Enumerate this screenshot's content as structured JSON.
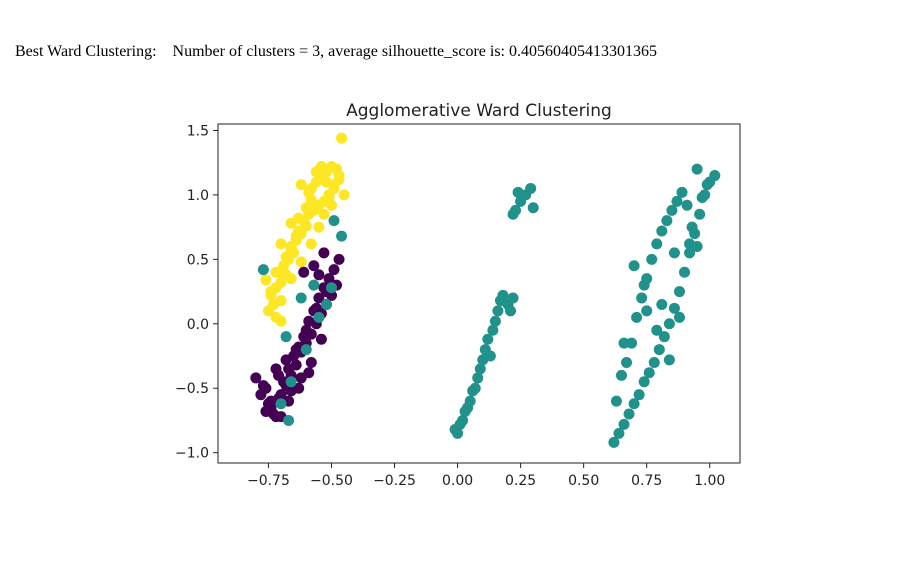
{
  "caption": {
    "label": "Best Ward Clustering:",
    "text": "Number of clusters = 3, average silhouette_score is: 0.40560405413301365"
  },
  "chart_data": {
    "type": "scatter",
    "title": "Agglomerative Ward Clustering",
    "xlabel": "",
    "ylabel": "",
    "xlim": [
      -0.95,
      1.12
    ],
    "ylim": [
      -1.08,
      1.55
    ],
    "x_ticks": [
      -0.75,
      -0.5,
      -0.25,
      0.0,
      0.25,
      0.5,
      0.75,
      1.0
    ],
    "x_tick_labels": [
      "−0.75",
      "−0.50",
      "−0.25",
      "0.00",
      "0.25",
      "0.50",
      "0.75",
      "1.00"
    ],
    "y_ticks": [
      -1.0,
      -0.5,
      0.0,
      0.5,
      1.0,
      1.5
    ],
    "y_tick_labels": [
      "−1.0",
      "−0.5",
      "0.0",
      "0.5",
      "1.0",
      "1.5"
    ],
    "grid": false,
    "legend": "none",
    "colors": {
      "cluster_yellow": "#fde725",
      "cluster_purple": "#440154",
      "cluster_teal": "#21918c"
    },
    "series": [
      {
        "color": "#fde725",
        "x": [
          -0.46,
          -0.48,
          -0.5,
          -0.52,
          -0.54,
          -0.56,
          -0.58,
          -0.47,
          -0.49,
          -0.51,
          -0.53,
          -0.55,
          -0.57,
          -0.59,
          -0.61,
          -0.6,
          -0.62,
          -0.64,
          -0.66,
          -0.63,
          -0.65,
          -0.67,
          -0.69,
          -0.71,
          -0.68,
          -0.7,
          -0.72,
          -0.74,
          -0.73,
          -0.75,
          -0.72,
          -0.7,
          -0.66,
          -0.62,
          -0.58,
          -0.55,
          -0.53,
          -0.51,
          -0.49,
          -0.47,
          -0.6,
          -0.64,
          -0.68,
          -0.72,
          -0.76,
          -0.74,
          -0.7,
          -0.66,
          -0.63,
          -0.59,
          -0.56,
          -0.54,
          -0.52,
          -0.5,
          -0.48,
          -0.62,
          -0.58,
          -0.66,
          -0.7,
          -0.45
        ],
        "y": [
          1.44,
          1.2,
          1.22,
          1.18,
          1.15,
          1.1,
          1.05,
          1.12,
          1.08,
          1.0,
          0.95,
          0.92,
          0.88,
          0.85,
          0.8,
          0.76,
          0.7,
          0.65,
          0.6,
          0.72,
          0.55,
          0.5,
          0.45,
          0.4,
          0.38,
          0.32,
          0.28,
          0.22,
          0.15,
          0.1,
          0.05,
          0.02,
          0.35,
          0.48,
          0.62,
          0.75,
          0.85,
          0.98,
          1.05,
          1.15,
          0.9,
          0.68,
          0.52,
          0.4,
          0.34,
          0.25,
          0.18,
          0.58,
          0.82,
          1.02,
          1.18,
          1.22,
          1.1,
          0.92,
          1.2,
          1.08,
          0.96,
          0.78,
          0.62,
          1.0
        ]
      },
      {
        "color": "#440154",
        "x": [
          -0.8,
          -0.78,
          -0.76,
          -0.74,
          -0.72,
          -0.7,
          -0.68,
          -0.66,
          -0.64,
          -0.62,
          -0.6,
          -0.58,
          -0.56,
          -0.54,
          -0.52,
          -0.5,
          -0.48,
          -0.77,
          -0.75,
          -0.73,
          -0.71,
          -0.69,
          -0.67,
          -0.65,
          -0.63,
          -0.61,
          -0.59,
          -0.57,
          -0.55,
          -0.53,
          -0.51,
          -0.49,
          -0.47,
          -0.72,
          -0.68,
          -0.64,
          -0.6,
          -0.56,
          -0.52,
          -0.7,
          -0.66,
          -0.62,
          -0.58,
          -0.54,
          -0.74,
          -0.76,
          -0.71,
          -0.67,
          -0.63,
          -0.59,
          -0.55,
          -0.57,
          -0.53,
          -0.61
        ],
        "y": [
          -0.42,
          -0.55,
          -0.68,
          -0.6,
          -0.72,
          -0.55,
          -0.48,
          -0.4,
          -0.32,
          -0.22,
          -0.15,
          -0.08,
          0.0,
          0.08,
          0.15,
          0.22,
          0.3,
          -0.48,
          -0.62,
          -0.7,
          -0.58,
          -0.45,
          -0.35,
          -0.25,
          -0.18,
          -0.1,
          0.02,
          0.1,
          0.2,
          0.28,
          0.35,
          0.42,
          0.5,
          -0.35,
          -0.28,
          -0.2,
          -0.05,
          0.12,
          0.25,
          -0.72,
          -0.52,
          -0.42,
          -0.3,
          -0.12,
          -0.65,
          -0.5,
          -0.4,
          -0.6,
          -0.5,
          -0.38,
          0.38,
          0.45,
          0.55,
          0.4
        ]
      },
      {
        "color": "#21918c",
        "x": [
          -0.77,
          -0.67,
          -0.7,
          -0.66,
          -0.6,
          -0.55,
          -0.52,
          -0.5,
          -0.46,
          -0.49,
          -0.57,
          -0.62,
          -0.68,
          -0.01,
          0.0,
          0.02,
          0.03,
          0.05,
          0.06,
          0.08,
          0.09,
          0.1,
          0.11,
          0.12,
          0.14,
          0.15,
          0.16,
          0.17,
          0.18,
          0.2,
          0.21,
          0.22,
          0.23,
          0.25,
          0.27,
          0.29,
          0.3,
          0.22,
          0.24,
          0.13,
          0.07,
          0.04,
          0.01,
          0.62,
          0.64,
          0.66,
          0.68,
          0.7,
          0.72,
          0.74,
          0.76,
          0.78,
          0.8,
          0.82,
          0.84,
          0.86,
          0.88,
          0.9,
          0.92,
          0.94,
          0.96,
          0.98,
          1.0,
          1.02,
          0.65,
          0.67,
          0.69,
          0.71,
          0.73,
          0.75,
          0.77,
          0.79,
          0.81,
          0.83,
          0.85,
          0.87,
          0.89,
          0.91,
          0.93,
          0.95,
          0.97,
          0.99,
          0.81,
          0.79,
          0.74,
          0.7,
          0.84,
          0.88,
          0.92,
          0.95,
          0.63,
          0.66,
          0.75,
          0.86
        ],
        "y": [
          0.42,
          -0.75,
          -0.62,
          -0.45,
          -0.2,
          0.05,
          0.15,
          0.28,
          0.68,
          0.8,
          0.3,
          0.2,
          -0.1,
          -0.82,
          -0.85,
          -0.75,
          -0.68,
          -0.6,
          -0.52,
          -0.42,
          -0.35,
          -0.28,
          -0.2,
          -0.12,
          -0.05,
          0.02,
          0.1,
          0.18,
          0.22,
          0.15,
          0.1,
          0.2,
          0.88,
          0.95,
          1.0,
          1.05,
          0.9,
          0.85,
          1.02,
          -0.25,
          -0.5,
          -0.65,
          -0.78,
          -0.92,
          -0.85,
          -0.78,
          -0.7,
          -0.62,
          -0.55,
          -0.45,
          -0.38,
          -0.3,
          -0.2,
          -0.1,
          0.0,
          0.12,
          0.25,
          0.4,
          0.55,
          0.7,
          0.85,
          1.0,
          1.1,
          1.15,
          -0.4,
          -0.3,
          -0.15,
          0.05,
          0.2,
          0.35,
          0.5,
          0.62,
          0.72,
          0.8,
          0.88,
          0.95,
          1.02,
          0.92,
          0.75,
          0.6,
          0.98,
          1.08,
          0.15,
          -0.05,
          0.3,
          0.45,
          -0.28,
          0.05,
          0.62,
          1.2,
          -0.6,
          -0.15,
          0.1,
          0.55
        ]
      }
    ]
  }
}
